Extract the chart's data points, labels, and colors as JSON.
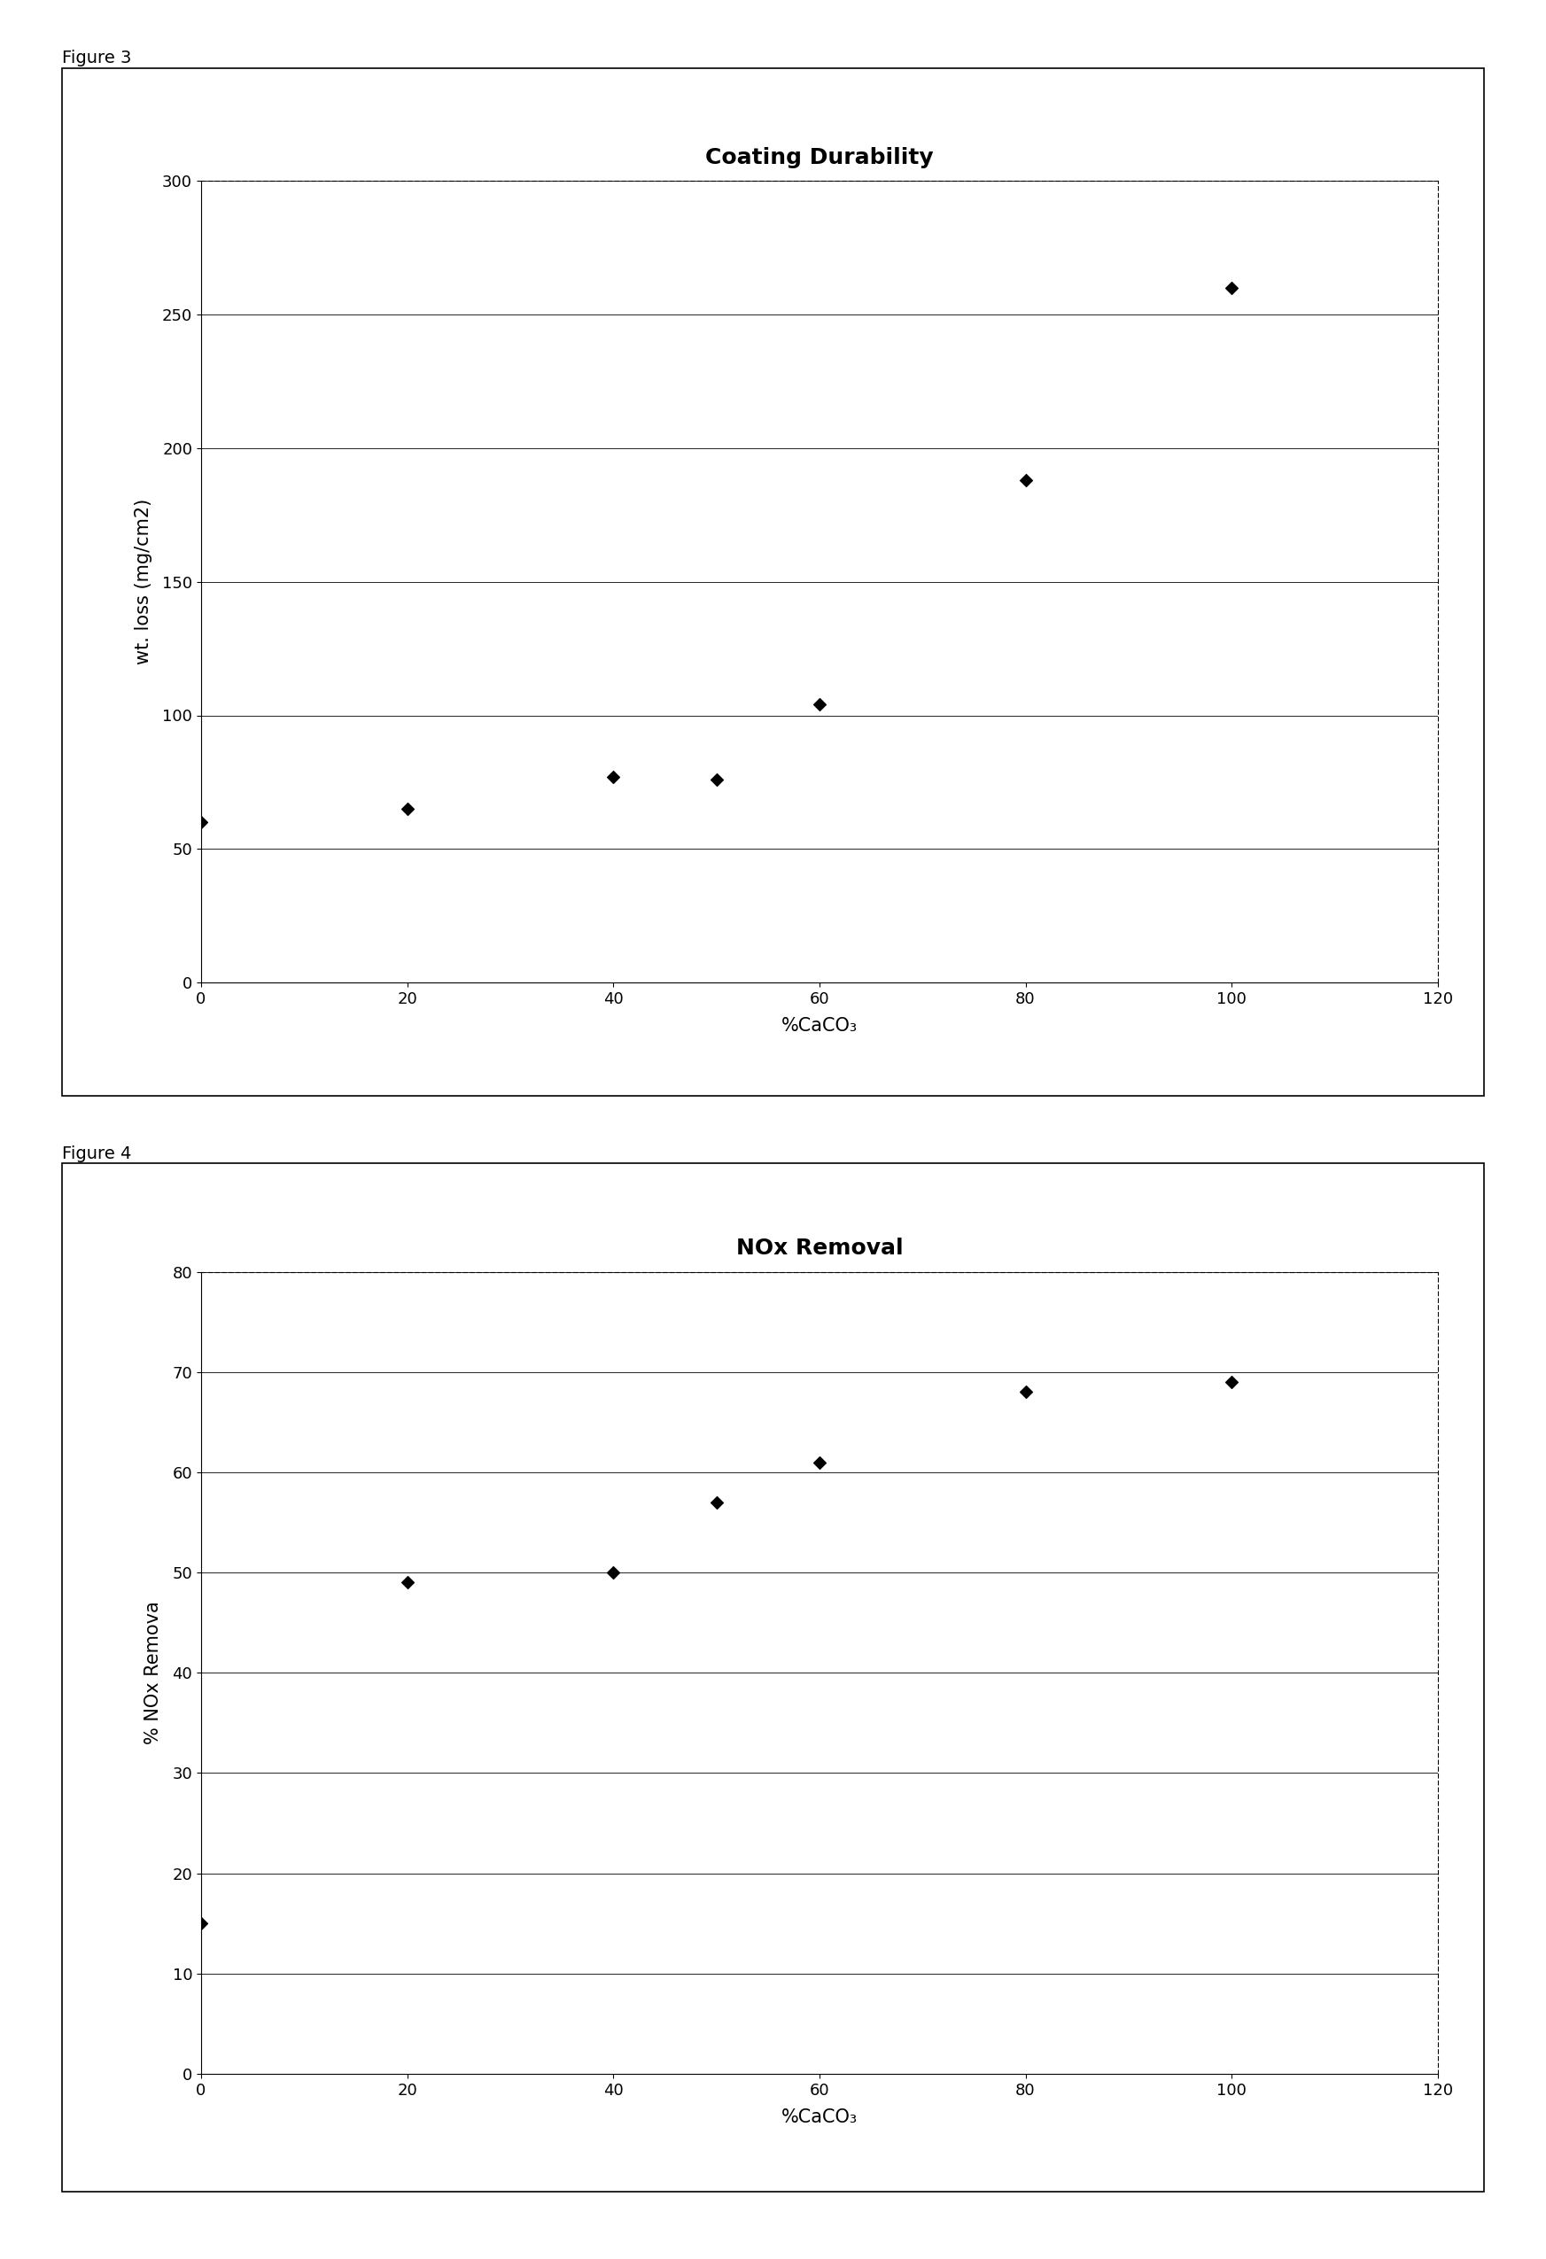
{
  "fig3": {
    "title": "Coating Durability",
    "xlabel": "%CaCO₃",
    "ylabel": "wt. loss (mg/cm2)",
    "x": [
      0,
      20,
      40,
      50,
      60,
      80,
      100
    ],
    "y": [
      60,
      65,
      77,
      76,
      104,
      188,
      260
    ],
    "xlim": [
      0,
      120
    ],
    "ylim": [
      0,
      300
    ],
    "xticks": [
      0,
      20,
      40,
      60,
      80,
      100,
      120
    ],
    "yticks": [
      0,
      50,
      100,
      150,
      200,
      250,
      300
    ],
    "figure_label": "Figure 3"
  },
  "fig4": {
    "title": "NOx Removal",
    "xlabel": "%CaCO₃",
    "ylabel": "% NOx Remova",
    "x": [
      0,
      20,
      40,
      50,
      60,
      80,
      100
    ],
    "y": [
      15,
      49,
      50,
      57,
      61,
      68,
      69
    ],
    "xlim": [
      0,
      120
    ],
    "ylim": [
      0,
      80
    ],
    "xticks": [
      0,
      20,
      40,
      60,
      80,
      100,
      120
    ],
    "yticks": [
      0,
      10,
      20,
      30,
      40,
      50,
      60,
      70,
      80
    ],
    "figure_label": "Figure 4"
  },
  "marker": "D",
  "marker_size": 7,
  "marker_color": "black",
  "title_fontsize": 18,
  "label_fontsize": 15,
  "tick_fontsize": 13,
  "figure_label_fontsize": 14,
  "background_color": "#ffffff"
}
